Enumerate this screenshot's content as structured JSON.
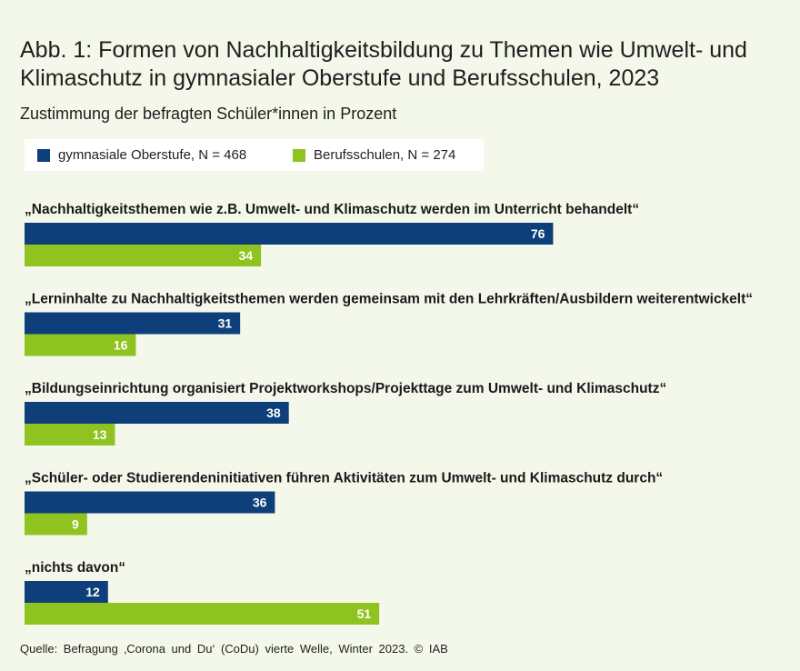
{
  "title": "Abb. 1: Formen von Nachhaltigkeitsbildung zu Themen wie Umwelt- und Klimaschutz in gymnasialer Oberstufe und Berufsschulen, 2023",
  "subtitle": "Zustimmung der befragten Schüler*innen in Prozent",
  "source": "Quelle: Befragung ‚Corona und Du‘ (CoDu) vierte Welle, Winter 2023. © IAB",
  "colors": {
    "series1": "#0f3f7a",
    "series2": "#8fc31f",
    "background": "#f3f8ea"
  },
  "chart_data": {
    "type": "bar",
    "orientation": "horizontal",
    "title": "Formen von Nachhaltigkeitsbildung zu Themen wie Umwelt- und Klimaschutz in gymnasialer Oberstufe und Berufsschulen, 2023",
    "ylabel": "Zustimmung der befragten Schüler*innen in Prozent",
    "xlim": [
      0,
      100
    ],
    "categories": [
      "„Nachhaltigkeitsthemen wie z.B. Umwelt- und Klimaschutz werden im Unterricht behandelt“",
      "„Lerninhalte zu Nachhaltigkeitsthemen werden gemeinsam mit den Lehrkräften/Ausbildern weiterentwickelt“",
      "„Bildungseinrichtung organisiert Projektworkshops/Projekttage zum Umwelt- und Klimaschutz“",
      "„Schüler- oder Studierendeninitiativen führen Aktivitäten zum Umwelt- und Klimaschutz durch“",
      "„nichts davon“"
    ],
    "series": [
      {
        "name": "gymnasiale Oberstufe, N = 468",
        "color": "#0f3f7a",
        "values": [
          76,
          31,
          38,
          36,
          12
        ]
      },
      {
        "name": "Berufsschulen, N = 274",
        "color": "#8fc31f",
        "values": [
          34,
          16,
          13,
          9,
          51
        ]
      }
    ]
  }
}
